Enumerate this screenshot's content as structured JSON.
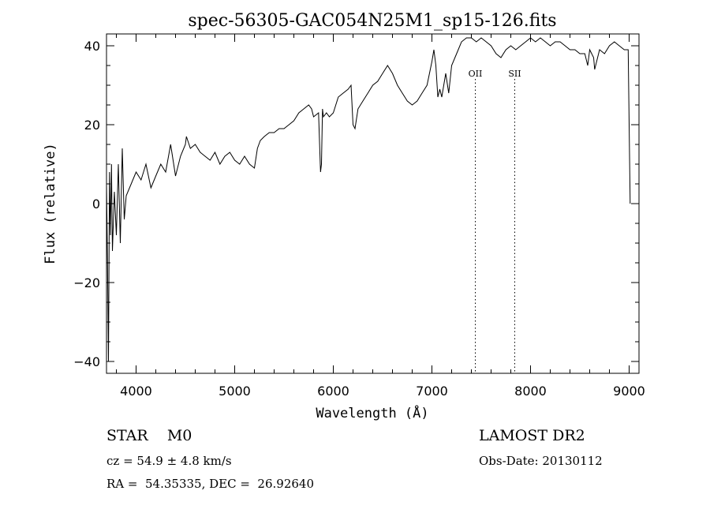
{
  "chart_data": {
    "type": "line",
    "title": "spec-56305-GAC054N25M1_sp15-126.fits",
    "xlabel": "Wavelength (Å)",
    "ylabel": "Flux (relative)",
    "xlim": [
      3700,
      9100
    ],
    "ylim": [
      -43,
      43
    ],
    "xticks": [
      4000,
      5000,
      6000,
      7000,
      8000,
      9000
    ],
    "xtick_labels": [
      "4000",
      "5000",
      "6000",
      "7000",
      "8000",
      "9000"
    ],
    "yticks": [
      -40,
      -20,
      0,
      20,
      40
    ],
    "ytick_labels": [
      "−40",
      "−20",
      "0",
      "20",
      "40"
    ],
    "grid": false,
    "series": [
      {
        "x": [
          3700,
          3710,
          3720,
          3730,
          3740,
          3750,
          3760,
          3780,
          3800,
          3820,
          3840,
          3860,
          3880,
          3900,
          3950,
          4000,
          4050,
          4100,
          4150,
          4200,
          4250,
          4300,
          4350,
          4400,
          4450,
          4500,
          4510,
          4550,
          4600,
          4650,
          4700,
          4750,
          4800,
          4850,
          4900,
          4950,
          5000,
          5050,
          5100,
          5150,
          5200,
          5230,
          5260,
          5300,
          5350,
          5400,
          5450,
          5500,
          5550,
          5600,
          5650,
          5700,
          5750,
          5780,
          5800,
          5850,
          5870,
          5880,
          5890,
          5900,
          5930,
          5960,
          6000,
          6050,
          6100,
          6150,
          6180,
          6200,
          6220,
          6250,
          6300,
          6350,
          6400,
          6450,
          6500,
          6550,
          6600,
          6650,
          6700,
          6750,
          6800,
          6850,
          6900,
          6950,
          7000,
          7020,
          7040,
          7060,
          7080,
          7100,
          7140,
          7170,
          7200,
          7250,
          7300,
          7350,
          7400,
          7450,
          7500,
          7550,
          7600,
          7650,
          7700,
          7750,
          7800,
          7850,
          7900,
          7950,
          8000,
          8050,
          8100,
          8150,
          8200,
          8250,
          8300,
          8350,
          8400,
          8450,
          8500,
          8550,
          8580,
          8600,
          8640,
          8650,
          8700,
          8750,
          8800,
          8850,
          8900,
          8950,
          8990,
          9000,
          9010
        ],
        "values": [
          5,
          -15,
          -40,
          8,
          -8,
          10,
          -12,
          3,
          -8,
          10,
          -10,
          14,
          -4,
          2,
          5,
          8,
          6,
          10,
          4,
          7,
          10,
          8,
          15,
          7,
          12,
          15,
          17,
          14,
          15,
          13,
          12,
          11,
          13,
          10,
          12,
          13,
          11,
          10,
          12,
          10,
          9,
          14,
          16,
          17,
          18,
          18,
          19,
          19,
          20,
          21,
          23,
          24,
          25,
          24,
          22,
          23,
          8,
          10,
          24,
          22,
          23,
          22,
          23,
          27,
          28,
          29,
          30,
          20,
          19,
          24,
          26,
          28,
          30,
          31,
          33,
          35,
          33,
          30,
          28,
          26,
          25,
          26,
          28,
          30,
          36,
          39,
          35,
          27,
          29,
          27,
          33,
          28,
          35,
          38,
          41,
          42,
          42,
          41,
          42,
          41,
          40,
          38,
          37,
          39,
          40,
          39,
          40,
          41,
          42,
          41,
          42,
          41,
          40,
          41,
          41,
          40,
          39,
          39,
          38,
          38,
          35,
          39,
          37,
          34,
          39,
          38,
          40,
          41,
          40,
          39,
          39,
          20,
          0
        ]
      }
    ],
    "annotations": [
      {
        "label": "OII",
        "x": 7440
      },
      {
        "label": "SII",
        "x": 7840
      }
    ]
  },
  "info": {
    "object_class": "STAR    M0",
    "survey": "LAMOST DR2",
    "cz": "cz = 54.9 ± 4.8 km/s",
    "obs_date": "Obs-Date: 20130112",
    "coords": "RA =  54.35335, DEC =  26.92640"
  }
}
